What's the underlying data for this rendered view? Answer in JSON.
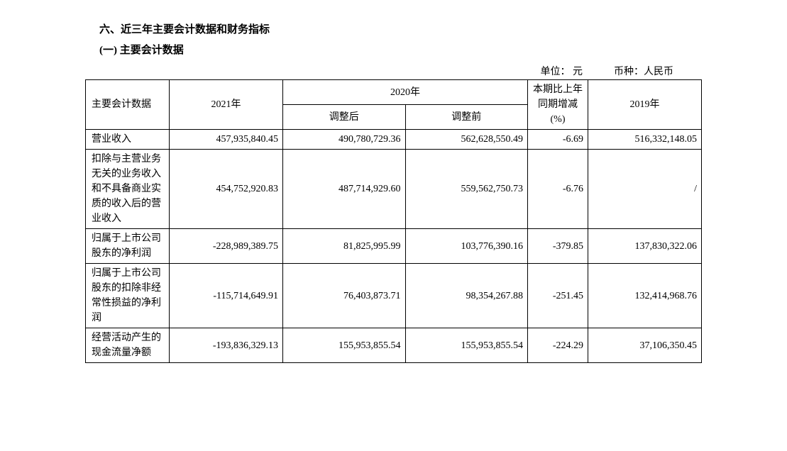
{
  "headings": {
    "section": "六、近三年主要会计数据和财务指标",
    "subsection": "(一) 主要会计数据"
  },
  "unitLine": {
    "unit": "单位：  元",
    "currency": "币种：人民币"
  },
  "table": {
    "headers": {
      "mainLabel": "主要会计数据",
      "year2021": "2021年",
      "year2020": "2020年",
      "adjAfter": "调整后",
      "adjBefore": "调整前",
      "change": "本期比上年同期增减(%)",
      "year2019": "2019年"
    },
    "rows": [
      {
        "label": "营业收入",
        "y2021": "457,935,840.45",
        "adjAfter": "490,780,729.36",
        "adjBefore": "562,628,550.49",
        "change": "-6.69",
        "y2019": "516,332,148.05"
      },
      {
        "label": "扣除与主营业务无关的业务收入和不具备商业实质的收入后的营业收入",
        "y2021": "454,752,920.83",
        "adjAfter": "487,714,929.60",
        "adjBefore": "559,562,750.73",
        "change": "-6.76",
        "y2019": "/"
      },
      {
        "label": "归属于上市公司股东的净利润",
        "y2021": "-228,989,389.75",
        "adjAfter": "81,825,995.99",
        "adjBefore": "103,776,390.16",
        "change": "-379.85",
        "y2019": "137,830,322.06"
      },
      {
        "label": "归属于上市公司股东的扣除非经常性损益的净利润",
        "y2021": "-115,714,649.91",
        "adjAfter": "76,403,873.71",
        "adjBefore": "98,354,267.88",
        "change": "-251.45",
        "y2019": "132,414,968.76"
      },
      {
        "label": "经营活动产生的现金流量净额",
        "y2021": "-193,836,329.13",
        "adjAfter": "155,953,855.54",
        "adjBefore": "155,953,855.54",
        "change": "-224.29",
        "y2019": "37,106,350.45"
      }
    ]
  }
}
